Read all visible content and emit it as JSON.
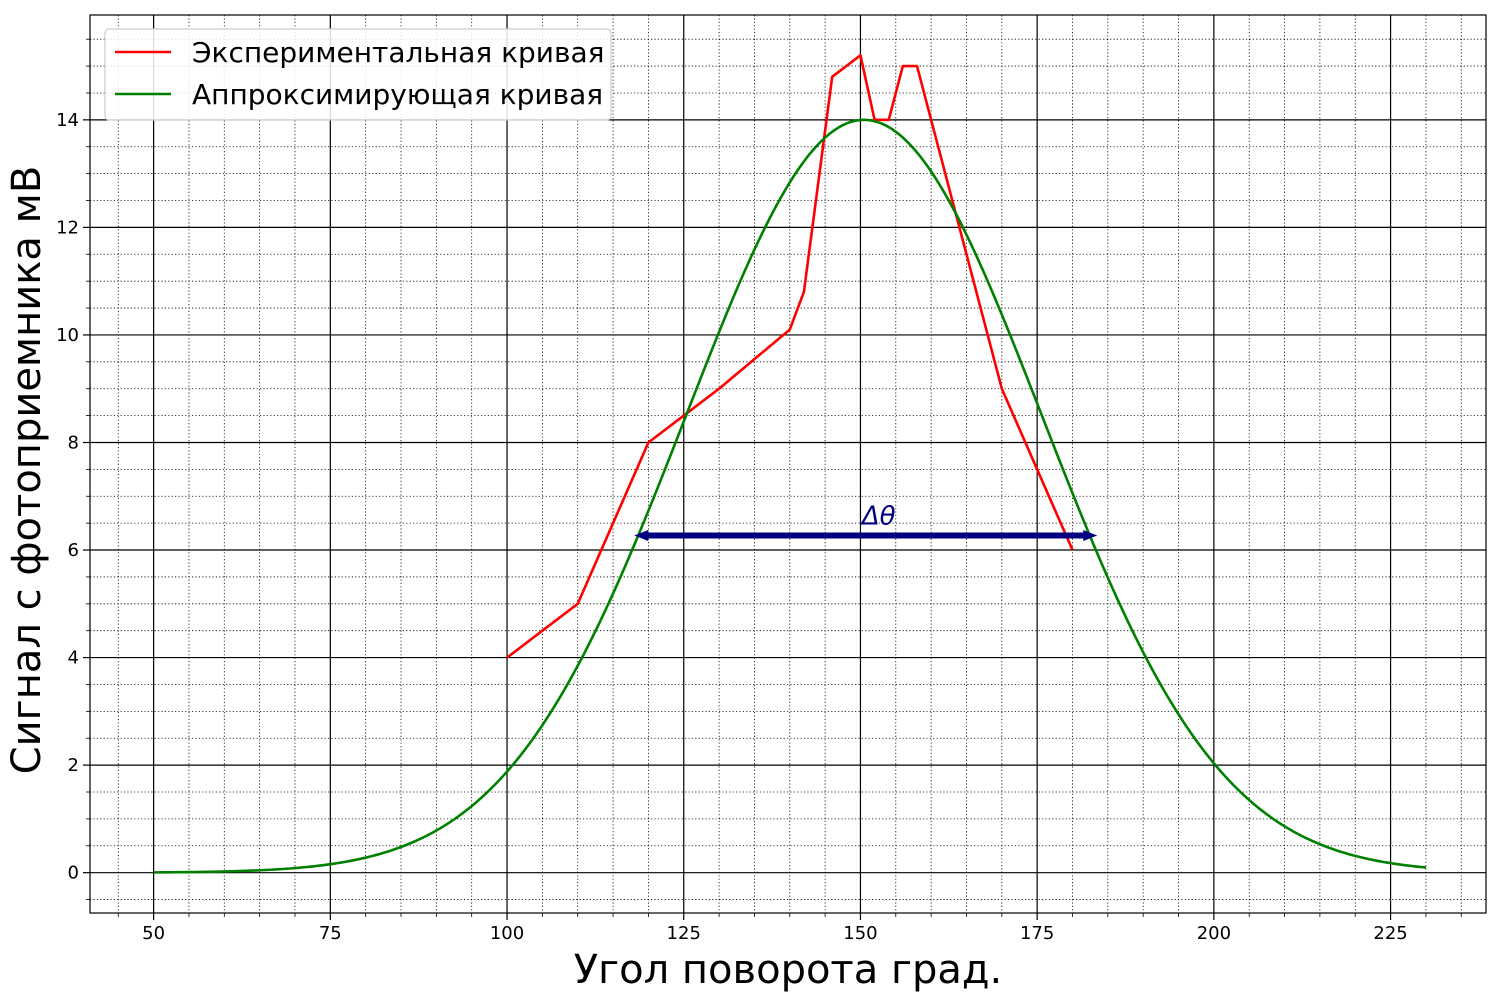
{
  "chart_data": {
    "type": "line",
    "xlabel": "Угол поворота град.",
    "ylabel": "Сигнал с фотоприемника мВ",
    "xlim": [
      41,
      238.5
    ],
    "ylim": [
      -0.75,
      15.95
    ],
    "x_ticks": [
      50,
      75,
      100,
      125,
      150,
      175,
      200,
      225
    ],
    "y_ticks": [
      0,
      2,
      4,
      6,
      8,
      10,
      12,
      14
    ],
    "x_tick_labels": [
      "50",
      "75",
      "100",
      "125",
      "150",
      "175",
      "200",
      "225"
    ],
    "y_tick_labels": [
      "0",
      "2",
      "4",
      "6",
      "8",
      "10",
      "12",
      "14"
    ],
    "grid": "major solid, minor dotted",
    "legend_position": "top-left",
    "series": [
      {
        "name": "Экспериментальная кривая",
        "color": "#ff0000",
        "kind": "data",
        "x": [
          100,
          110,
          120,
          130,
          140,
          142,
          146,
          150,
          152,
          154,
          156,
          158,
          160,
          165,
          170,
          180
        ],
        "y": [
          4.0,
          5.0,
          8.0,
          9.0,
          10.1,
          10.8,
          14.8,
          15.2,
          14.0,
          14.0,
          15.0,
          15.0,
          14.0,
          11.5,
          9.0,
          6.0
        ]
      },
      {
        "name": "Аппроксимирующая кривая",
        "color": "#008000",
        "kind": "gaussian",
        "amplitude": 14.0,
        "center": 150.5,
        "sigma": 25.2,
        "x_range": [
          50,
          230
        ]
      }
    ],
    "annotations": [
      {
        "label": "Δθ",
        "color": "#000080",
        "type": "double-arrow",
        "x_start": 118,
        "x_end": 183.5,
        "y": 6.27
      }
    ]
  }
}
